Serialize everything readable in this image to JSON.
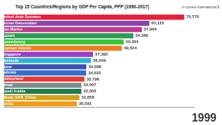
{
  "chart_data": {
    "type": "bar",
    "orientation": "horizontal",
    "title": "Top 15 Countries/Regions by GDP Per Capita, PPP (1990-2017)",
    "subtitle": "in current international $",
    "annotation": "1999",
    "categories": [
      "United Arab Emirates",
      "Brunei Darussalam",
      "San Marino",
      "Kuwait",
      "Luxembourg",
      "Cayman Islands",
      "Singapore",
      "Bermuda",
      "Qatar",
      "Bahrain",
      "Switzerland",
      "Oman",
      "Saudi Arabia",
      "Macao SAR, China",
      "Aruba"
    ],
    "values": [
      75770,
      61115,
      57964,
      54389,
      50304,
      49524,
      37393,
      36549,
      34588,
      34522,
      33796,
      32507,
      32503,
      31658,
      30591
    ],
    "value_labels": [
      "75,770",
      "61,115",
      "57,964",
      "54,389",
      "50,304",
      "49,524",
      "37,393",
      "36,549",
      "34,588",
      "34,522",
      "33,796",
      "32,507",
      "32,503",
      "31,658",
      "30,591"
    ],
    "colors": [
      "#e8203a",
      "#8e44ad",
      "#c0398f",
      "#2e9d57",
      "#35c43a",
      "#f07c1a",
      "#9b3fd1",
      "#29b6d6",
      "#3f51b5",
      "#2f6fd0",
      "#e53935",
      "#7f8c8d",
      "#1f7a4d",
      "#d4a017",
      "#f39c12"
    ],
    "xlim": [
      0,
      80000
    ],
    "data_labels": true,
    "grid": false,
    "tick_labels": "y"
  }
}
